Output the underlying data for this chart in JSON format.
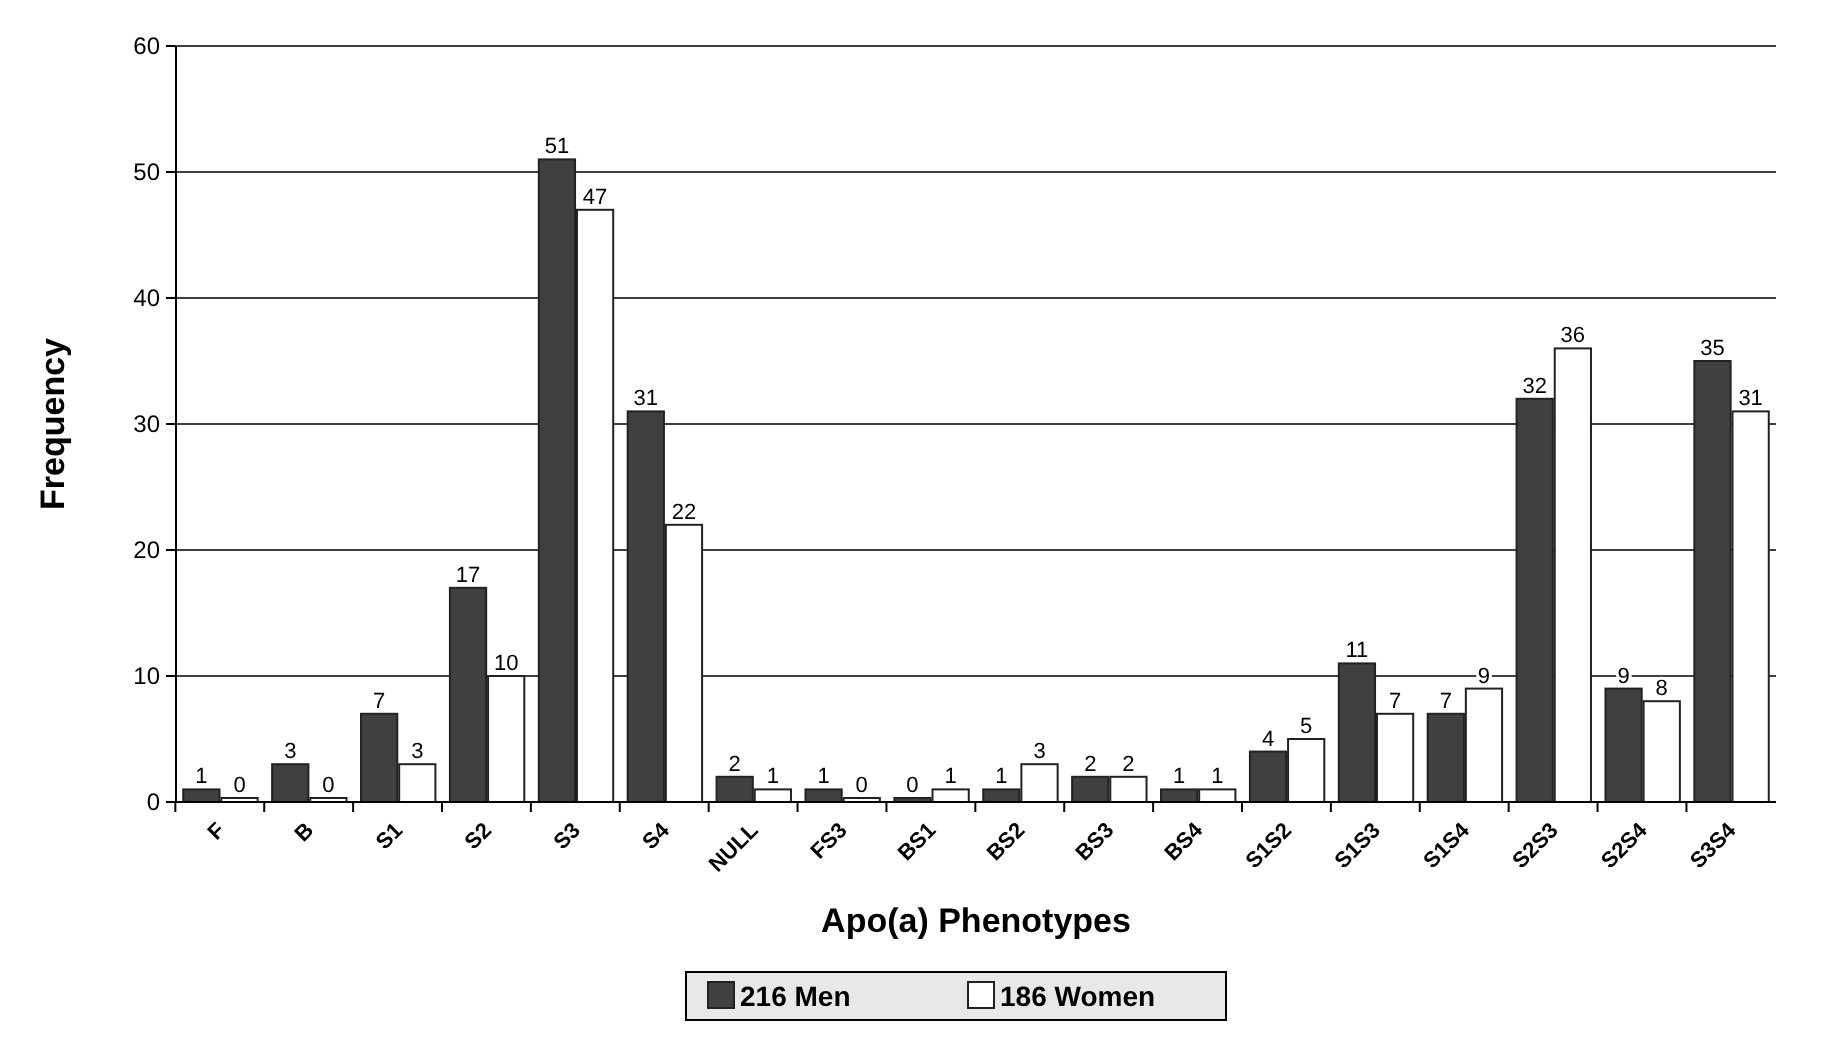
{
  "chart_data": {
    "type": "bar",
    "xlabel": "Apo(a) Phenotypes",
    "ylabel": "Frequency",
    "categories": [
      "F",
      "B",
      "S1",
      "S2",
      "S3",
      "S4",
      "NULL",
      "FS3",
      "BS1",
      "BS2",
      "BS3",
      "BS4",
      "S1S2",
      "S1S3",
      "S1S4",
      "S2S3",
      "S2S4",
      "S3S4"
    ],
    "series": [
      {
        "name": "216 Men",
        "color": "#404040",
        "values": [
          1,
          3,
          7,
          17,
          51,
          31,
          2,
          1,
          0,
          1,
          2,
          1,
          4,
          11,
          7,
          32,
          9,
          35
        ]
      },
      {
        "name": "186 Women",
        "color": "#ffffff",
        "values": [
          0,
          0,
          3,
          10,
          47,
          22,
          1,
          0,
          1,
          3,
          2,
          1,
          5,
          7,
          9,
          36,
          8,
          31
        ]
      }
    ],
    "ylim": [
      0,
      60
    ],
    "yticks": [
      0,
      10,
      20,
      30,
      40,
      50,
      60
    ],
    "grid": "y",
    "data_labels": true,
    "legend": "bottom"
  }
}
